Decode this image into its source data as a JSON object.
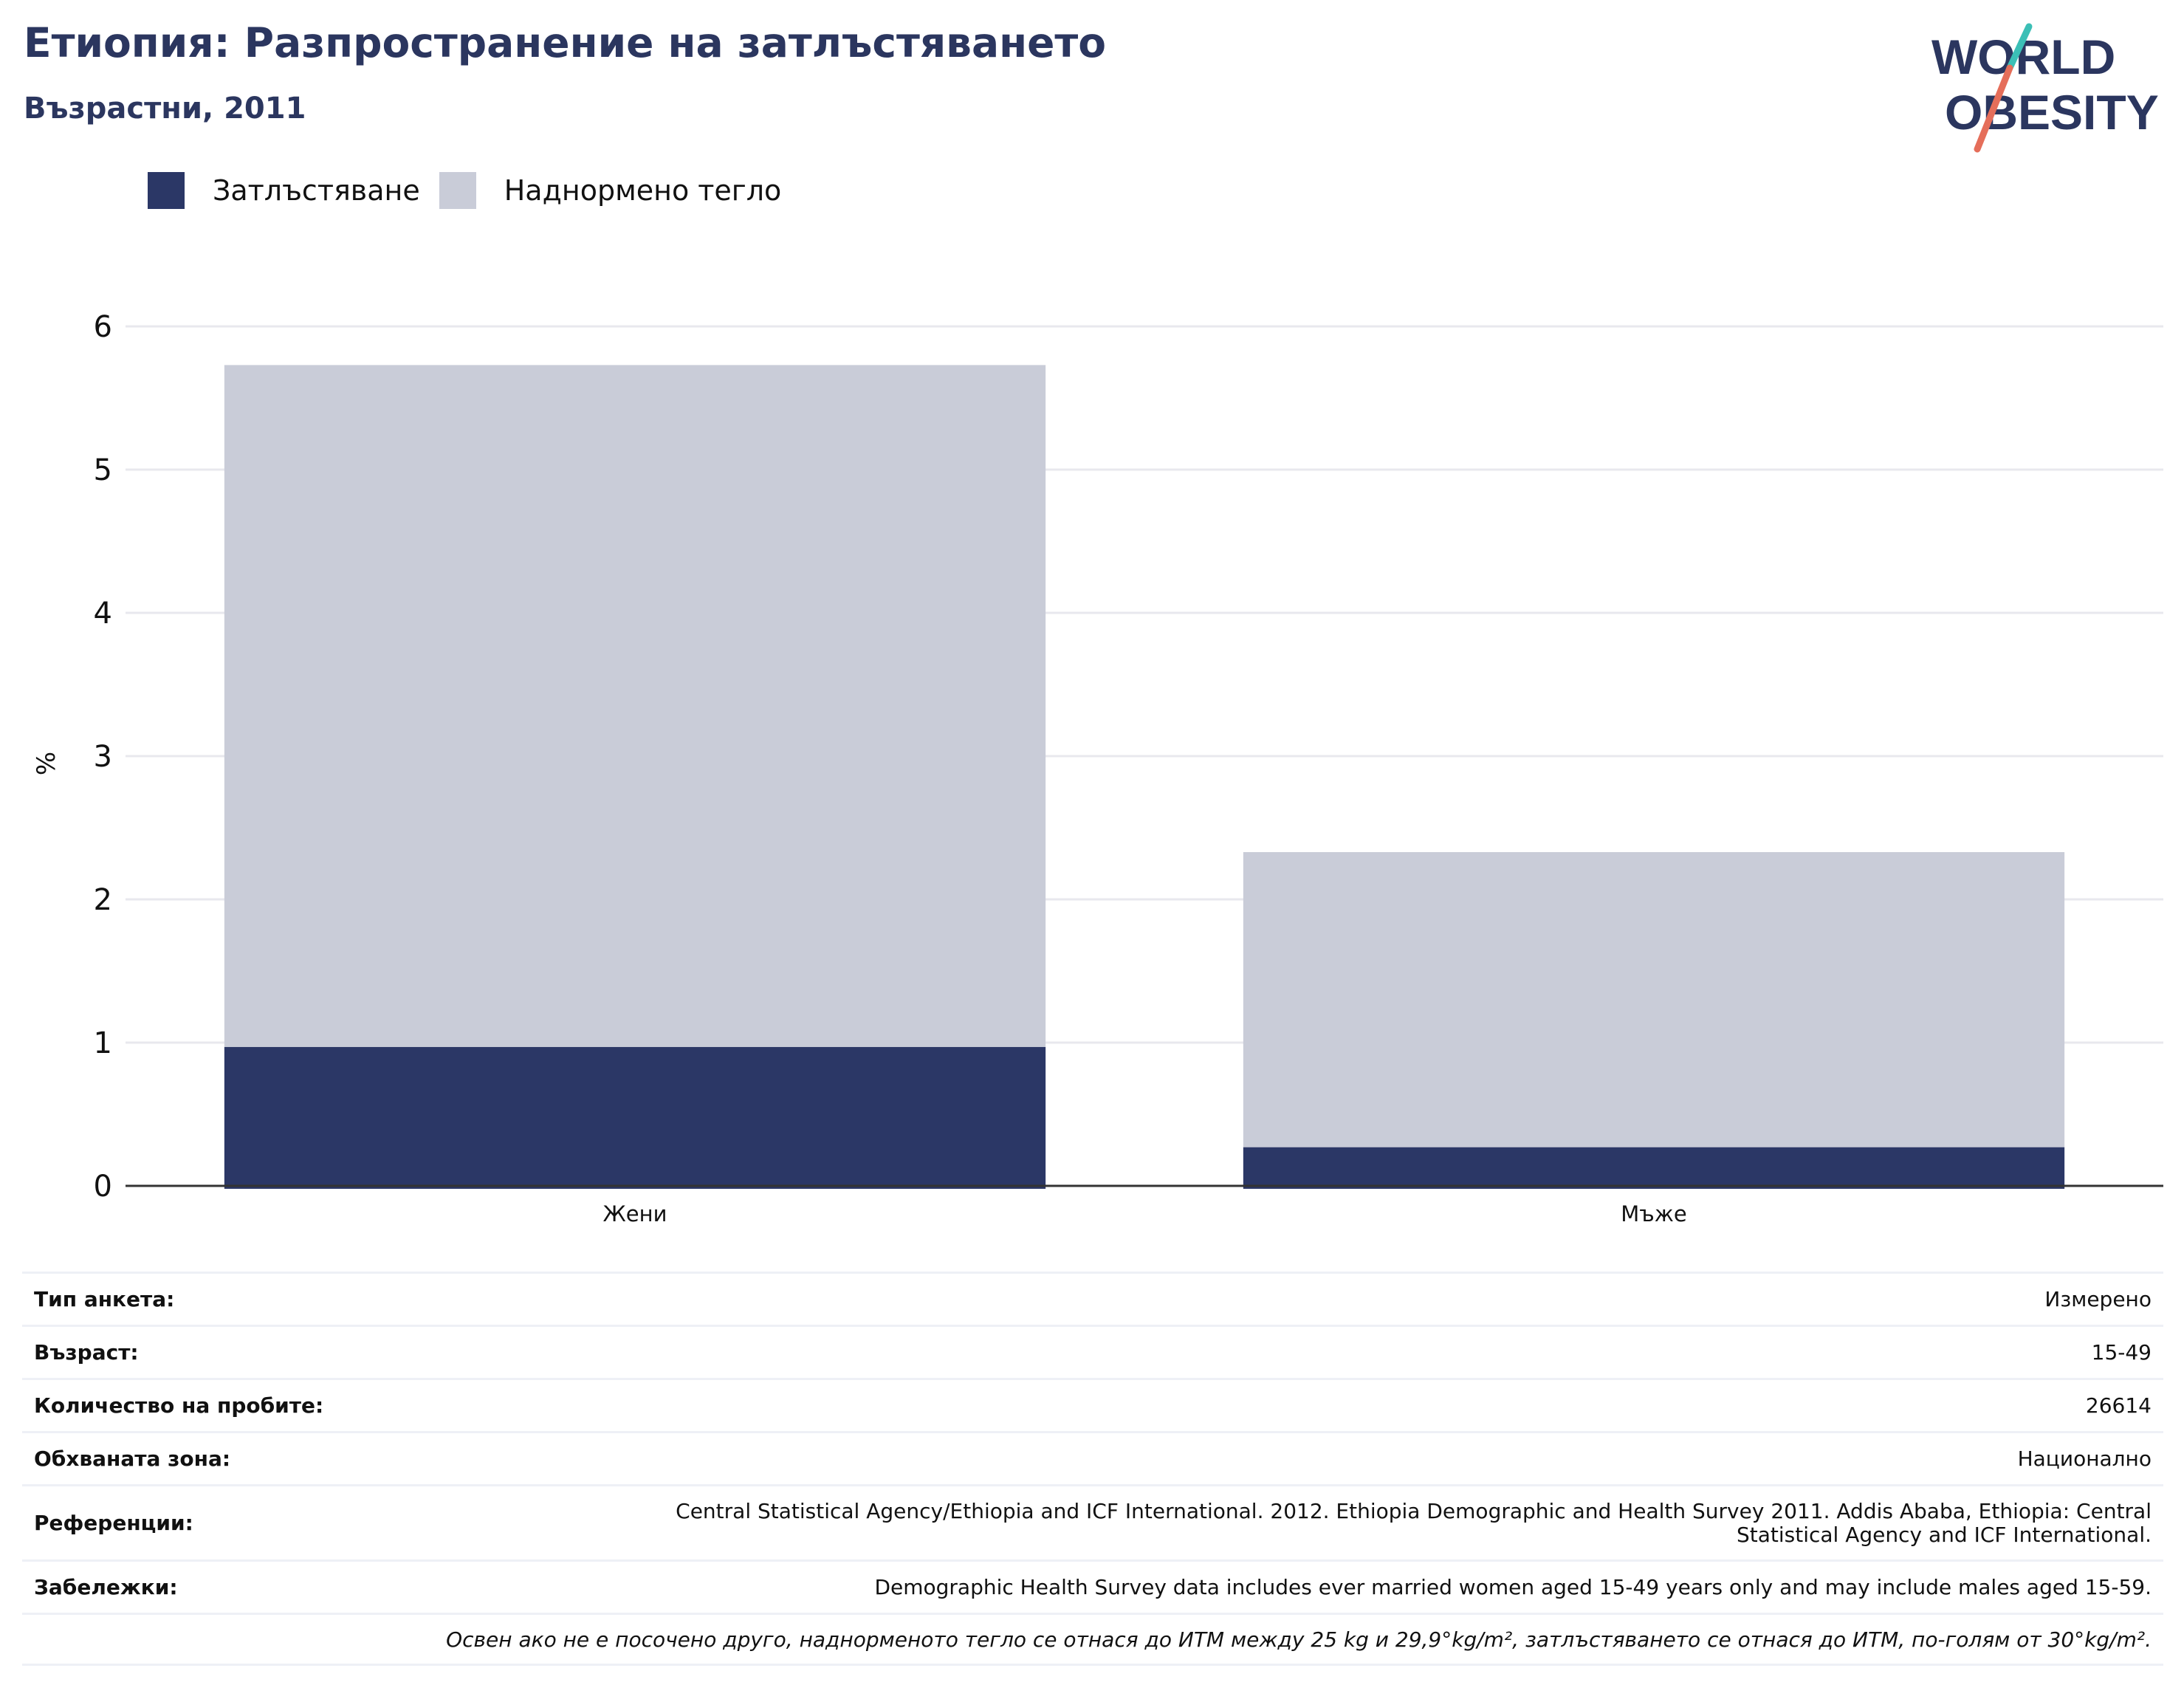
{
  "header": {
    "title": "Етиопия: Разпространение на затлъстяването",
    "subtitle": "Възрастни, 2011"
  },
  "logo": {
    "line1": "WORLD",
    "line2": "OBESITY",
    "colors": {
      "text": "#2b365f",
      "slash_top": "#3bbfb6",
      "slash_bottom": "#e56e5a"
    }
  },
  "colors": {
    "obesity": "#2b3766",
    "overweight": "#c9ccd8",
    "grid": "#e8e8ee",
    "axis": "#333333"
  },
  "chart_data": {
    "type": "bar",
    "stacked": true,
    "categories": [
      "Жени",
      "Мъже"
    ],
    "series": [
      {
        "name": "Затлъстяване",
        "values": [
          0.97,
          0.27
        ]
      },
      {
        "name": "Наднормено тегло",
        "values": [
          4.76,
          2.06
        ]
      }
    ],
    "ylabel": "%",
    "ylim": [
      0,
      6
    ],
    "yticks": [
      "0",
      "1",
      "2",
      "3",
      "4",
      "5",
      "6"
    ],
    "legend_position": "top-left",
    "grid": true
  },
  "info": {
    "rows": [
      {
        "label": "Тип анкета:",
        "value": "Измерено"
      },
      {
        "label": "Възраст:",
        "value": "15-49"
      },
      {
        "label": "Количество на пробите:",
        "value": "26614"
      },
      {
        "label": "Обхваната зона:",
        "value": "Национално"
      },
      {
        "label": "Референции:",
        "value": "Central Statistical Agency/Ethiopia and ICF International. 2012. Ethiopia Demographic and Health Survey 2011. Addis Ababa, Ethiopia: Central Statistical Agency and ICF International."
      },
      {
        "label": "Забележки:",
        "value": "Demographic Health Survey data includes ever married women aged 15-49 years only and may include males aged 15-59."
      }
    ],
    "note": "Освен ако не е посочено друго, наднорменото тегло се отнася до ИТМ между 25 kg и 29,9°kg/m², затлъстяването се отнася до ИТМ, по-голям от 30°kg/m²."
  }
}
